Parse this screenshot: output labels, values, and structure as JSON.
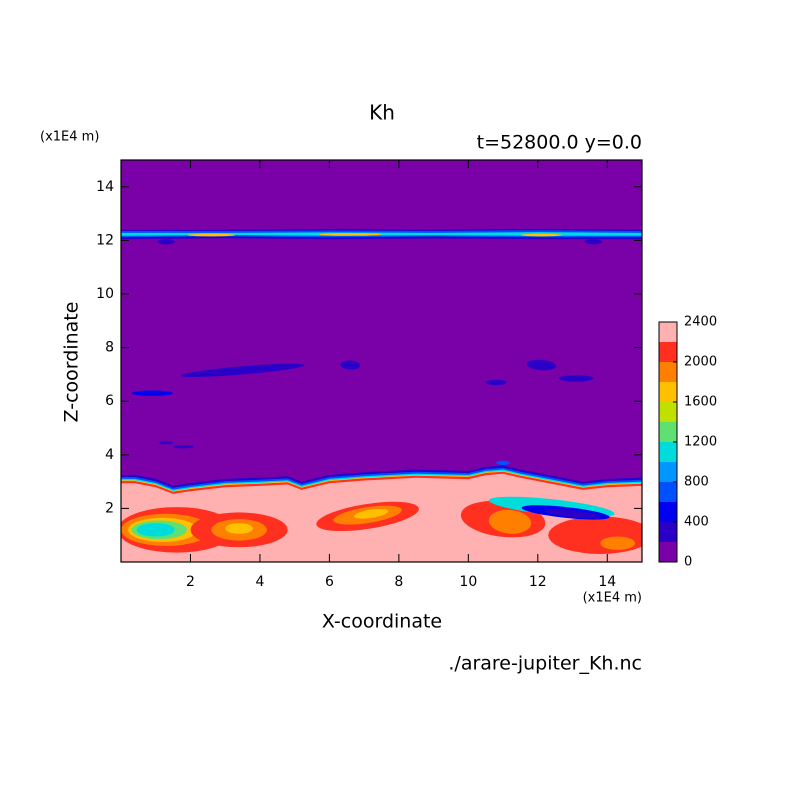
{
  "chart_data": {
    "type": "contour",
    "title": "Kh",
    "subtitle": "t=52800.0 y=0.0",
    "x_label": "X-coordinate",
    "y_label": "Z-coordinate",
    "x_unit": "(x1E4 m)",
    "y_unit": "(x1E4 m)",
    "source": "./arare-jupiter_Kh.nc",
    "xlim": [
      0,
      15
    ],
    "xticks": [
      2,
      4,
      6,
      8,
      10,
      12,
      14
    ],
    "ylim": [
      0,
      15
    ],
    "yticks": [
      2,
      4,
      6,
      8,
      10,
      12,
      14
    ],
    "levels": [
      0,
      200,
      400,
      600,
      800,
      1000,
      1200,
      1400,
      1600,
      1800,
      2000,
      2200,
      2400
    ],
    "colorbar_ticks": [
      0,
      400,
      800,
      1200,
      1600,
      2000,
      2400
    ],
    "colors": [
      "#7a00a8",
      "#2a00c8",
      "#0000f0",
      "#0050ff",
      "#0096ff",
      "#00dcdc",
      "#60e070",
      "#c0e000",
      "#ffc000",
      "#ff8000",
      "#ff3020",
      "#ffb0b0"
    ]
  }
}
